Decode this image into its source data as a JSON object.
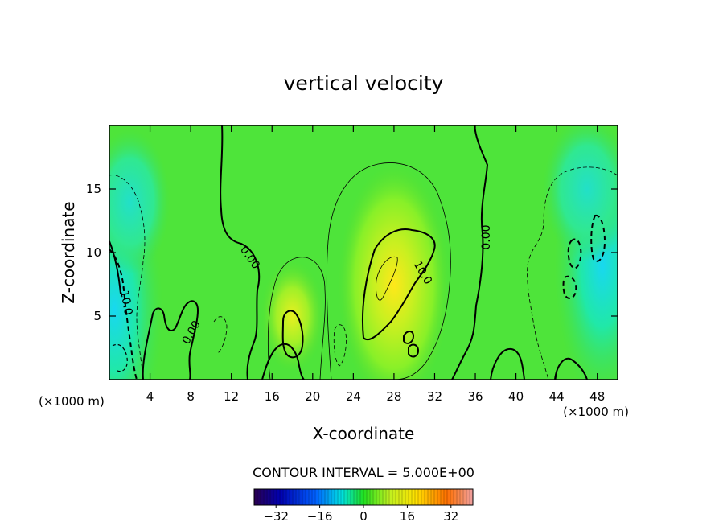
{
  "chart_data": {
    "type": "heatmap",
    "title": "vertical velocity",
    "xlabel": "X-coordinate",
    "ylabel": "Z-coordinate",
    "x_unit_left": "(×1000 m)",
    "x_unit_right": "(×1000 m)",
    "xlim": [
      0,
      50
    ],
    "ylim": [
      0,
      20
    ],
    "x_ticks": [
      4,
      8,
      12,
      16,
      20,
      24,
      28,
      32,
      36,
      40,
      44,
      48
    ],
    "y_ticks": [
      5,
      10,
      15
    ],
    "contour_interval_text": "CONTOUR INTERVAL = 5.000E+00",
    "contour_labels": [
      {
        "text": "0.00",
        "x": 13.8,
        "y": 9.6,
        "rot": 55
      },
      {
        "text": "0.00",
        "x": 37.1,
        "y": 11.2,
        "rot": -90
      },
      {
        "text": "0.00",
        "x": 8.1,
        "y": 3.7,
        "rot": -60
      },
      {
        "text": "10.0",
        "x": 30.8,
        "y": 8.4,
        "rot": 60
      },
      {
        "text": "-10.0",
        "x": 1.6,
        "y": 6.2,
        "rot": 80
      }
    ],
    "colorbar": {
      "min": -40,
      "max": 40,
      "ticks": [
        -32,
        -16,
        0,
        16,
        32
      ],
      "tick_labels": [
        "−32",
        "−16",
        "0",
        "16",
        "32"
      ]
    },
    "features": [
      {
        "kind": "updraft_max",
        "x": 28.0,
        "y": 7.5,
        "value": 14
      },
      {
        "kind": "downdraft_min",
        "x": 0.5,
        "y": 5.5,
        "value": -14
      },
      {
        "kind": "downdraft_min",
        "x": 48.5,
        "y": 9.0,
        "value": -12
      }
    ]
  }
}
